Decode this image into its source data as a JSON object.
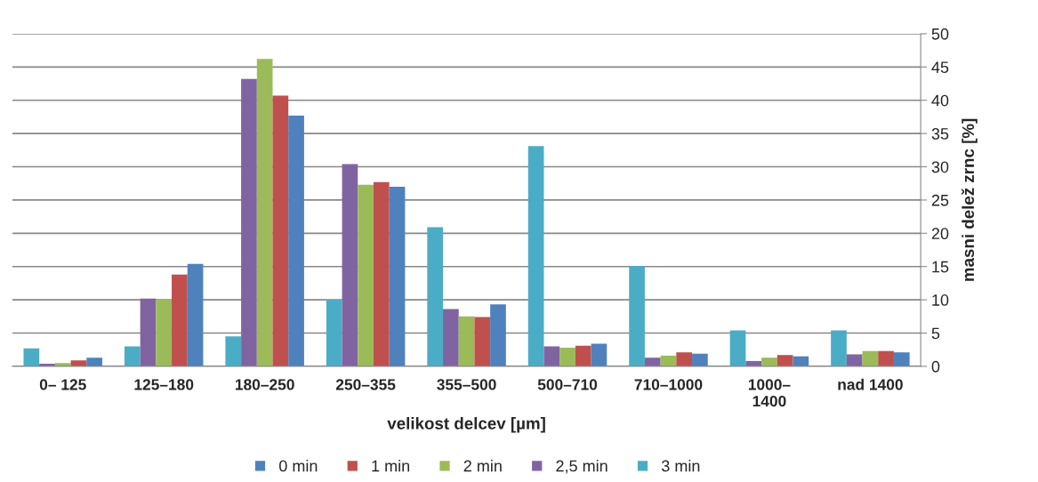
{
  "chart_data": {
    "type": "bar",
    "xlabel": "velikost delcev [µm]",
    "ylabel": "masni delež zrnc [%]",
    "categories": [
      "0– 125",
      "125–180",
      "180–250",
      "250–355",
      "355–500",
      "500–710",
      "710–1000",
      "1000–\n1400",
      "nad 1400"
    ],
    "series": [
      {
        "name": "0 min",
        "color": "#4f81bd",
        "values": [
          1.3,
          15.4,
          37.7,
          27.0,
          9.3,
          3.4,
          1.9,
          1.5,
          2.1
        ]
      },
      {
        "name": "1 min",
        "color": "#c0504d",
        "values": [
          0.9,
          13.8,
          40.7,
          27.7,
          7.4,
          3.1,
          2.1,
          1.7,
          2.3
        ]
      },
      {
        "name": "2 min",
        "color": "#9bbb59",
        "values": [
          0.5,
          10.1,
          46.2,
          27.3,
          7.5,
          2.8,
          1.6,
          1.3,
          2.3
        ]
      },
      {
        "name": "2,5 min",
        "color": "#8064a2",
        "values": [
          0.4,
          10.2,
          43.2,
          30.4,
          8.6,
          3.0,
          1.3,
          0.8,
          1.8
        ]
      },
      {
        "name": "3 min",
        "color": "#4bacc6",
        "values": [
          2.7,
          3.0,
          4.5,
          10.0,
          20.9,
          33.1,
          15.1,
          5.4,
          5.4
        ]
      }
    ],
    "ylim": [
      0,
      50
    ],
    "yticks": [
      0,
      5,
      10,
      15,
      20,
      25,
      30,
      35,
      40,
      45,
      50
    ],
    "grid": "y",
    "legend": "bottom"
  }
}
